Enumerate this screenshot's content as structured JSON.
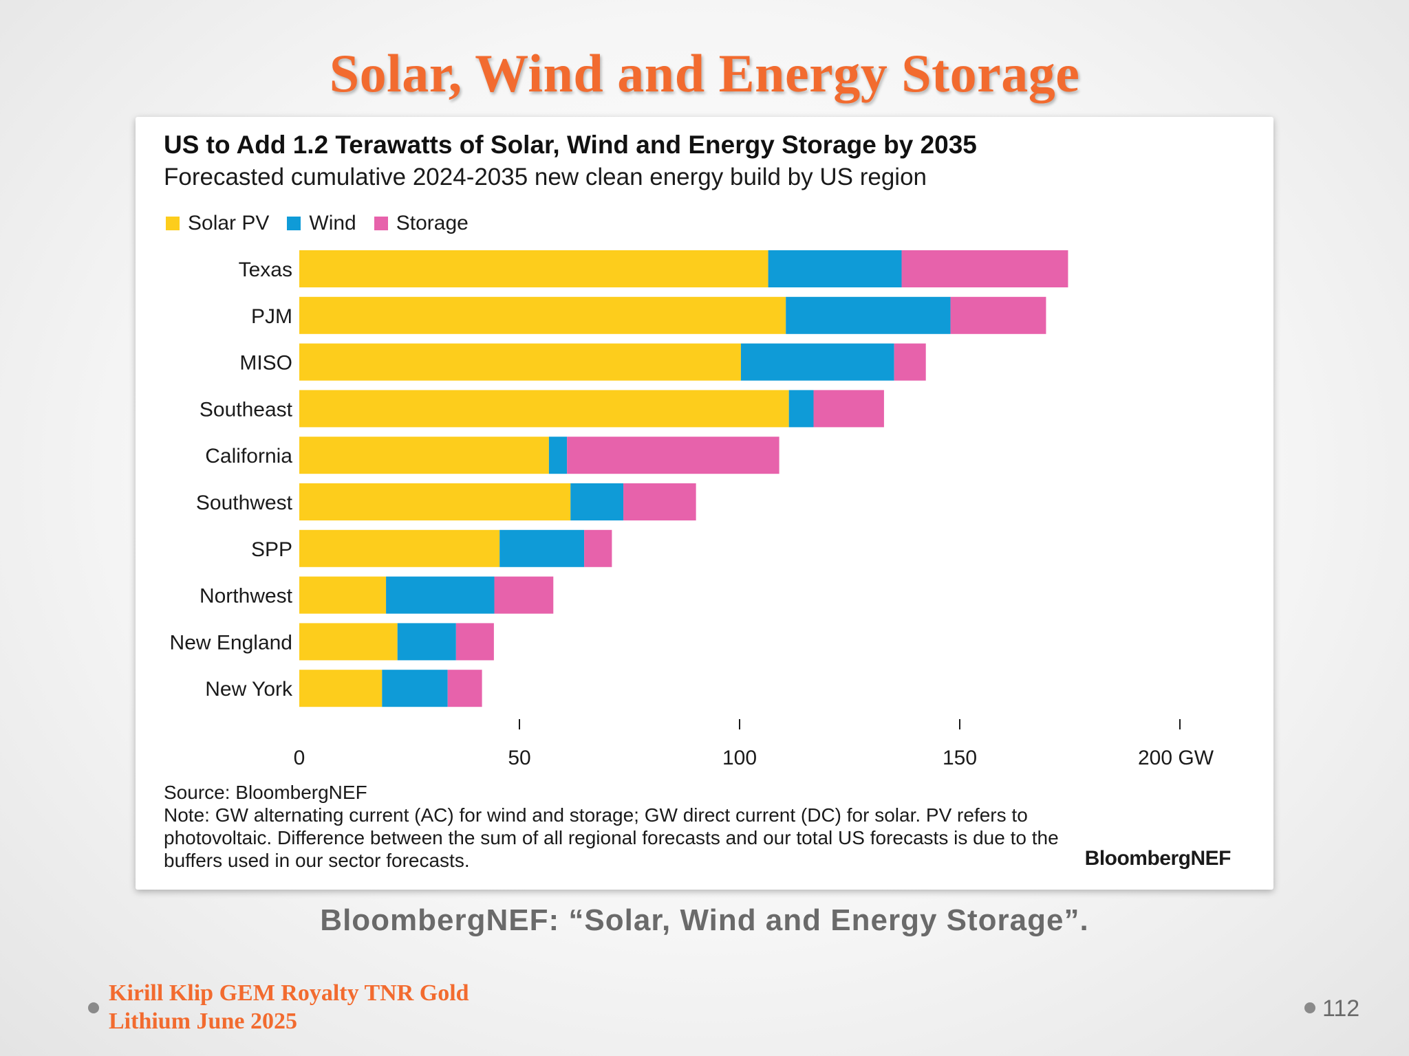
{
  "slide": {
    "title": "Solar, Wind and Energy Storage",
    "caption": "BloombergNEF: “Solar, Wind and Energy Storage”.",
    "footer_line1": "Kirill Klip GEM Royalty TNR Gold",
    "footer_line2": "Lithium June 2025",
    "page_number": "112",
    "title_color": "#f26b2f"
  },
  "chart_data": {
    "type": "bar",
    "orientation": "horizontal",
    "stacked": true,
    "title": "US to Add 1.2 Terawatts of Solar, Wind and Energy Storage by 2035",
    "subtitle": "Forecasted cumulative 2024-2035 new clean energy build by US region",
    "categories": [
      "Texas",
      "PJM",
      "MISO",
      "Southeast",
      "California",
      "Southwest",
      "SPP",
      "Northwest",
      "New England",
      "New York"
    ],
    "series": [
      {
        "name": "Solar PV",
        "color": "#fdcd1c",
        "values": [
          106.5,
          110.5,
          100.3,
          111.2,
          56.7,
          61.6,
          45.5,
          19.7,
          22.3,
          18.8
        ]
      },
      {
        "name": "Wind",
        "color": "#0f9bd7",
        "values": [
          30.3,
          37.4,
          34.8,
          5.6,
          4.1,
          12.0,
          19.2,
          24.6,
          13.3,
          14.9
        ]
      },
      {
        "name": "Storage",
        "color": "#e762ab",
        "values": [
          37.8,
          21.7,
          7.2,
          16.0,
          48.2,
          16.5,
          6.3,
          13.4,
          8.6,
          7.8
        ]
      }
    ],
    "xlim": [
      0,
      200
    ],
    "xticks": [
      "0",
      "50",
      "100",
      "150",
      "200 GW"
    ],
    "xtick_values": [
      0,
      50,
      100,
      150,
      200
    ],
    "grid": false,
    "legend": "top-left",
    "source": "Source: BloombergNEF",
    "note": "Note: GW alternating current (AC) for wind and storage; GW direct current (DC) for solar. PV refers to photovoltaic. Difference between the sum of all regional forecasts and our total US forecasts is due to the buffers used in our sector forecasts.",
    "brand": "BloombergNEF"
  }
}
